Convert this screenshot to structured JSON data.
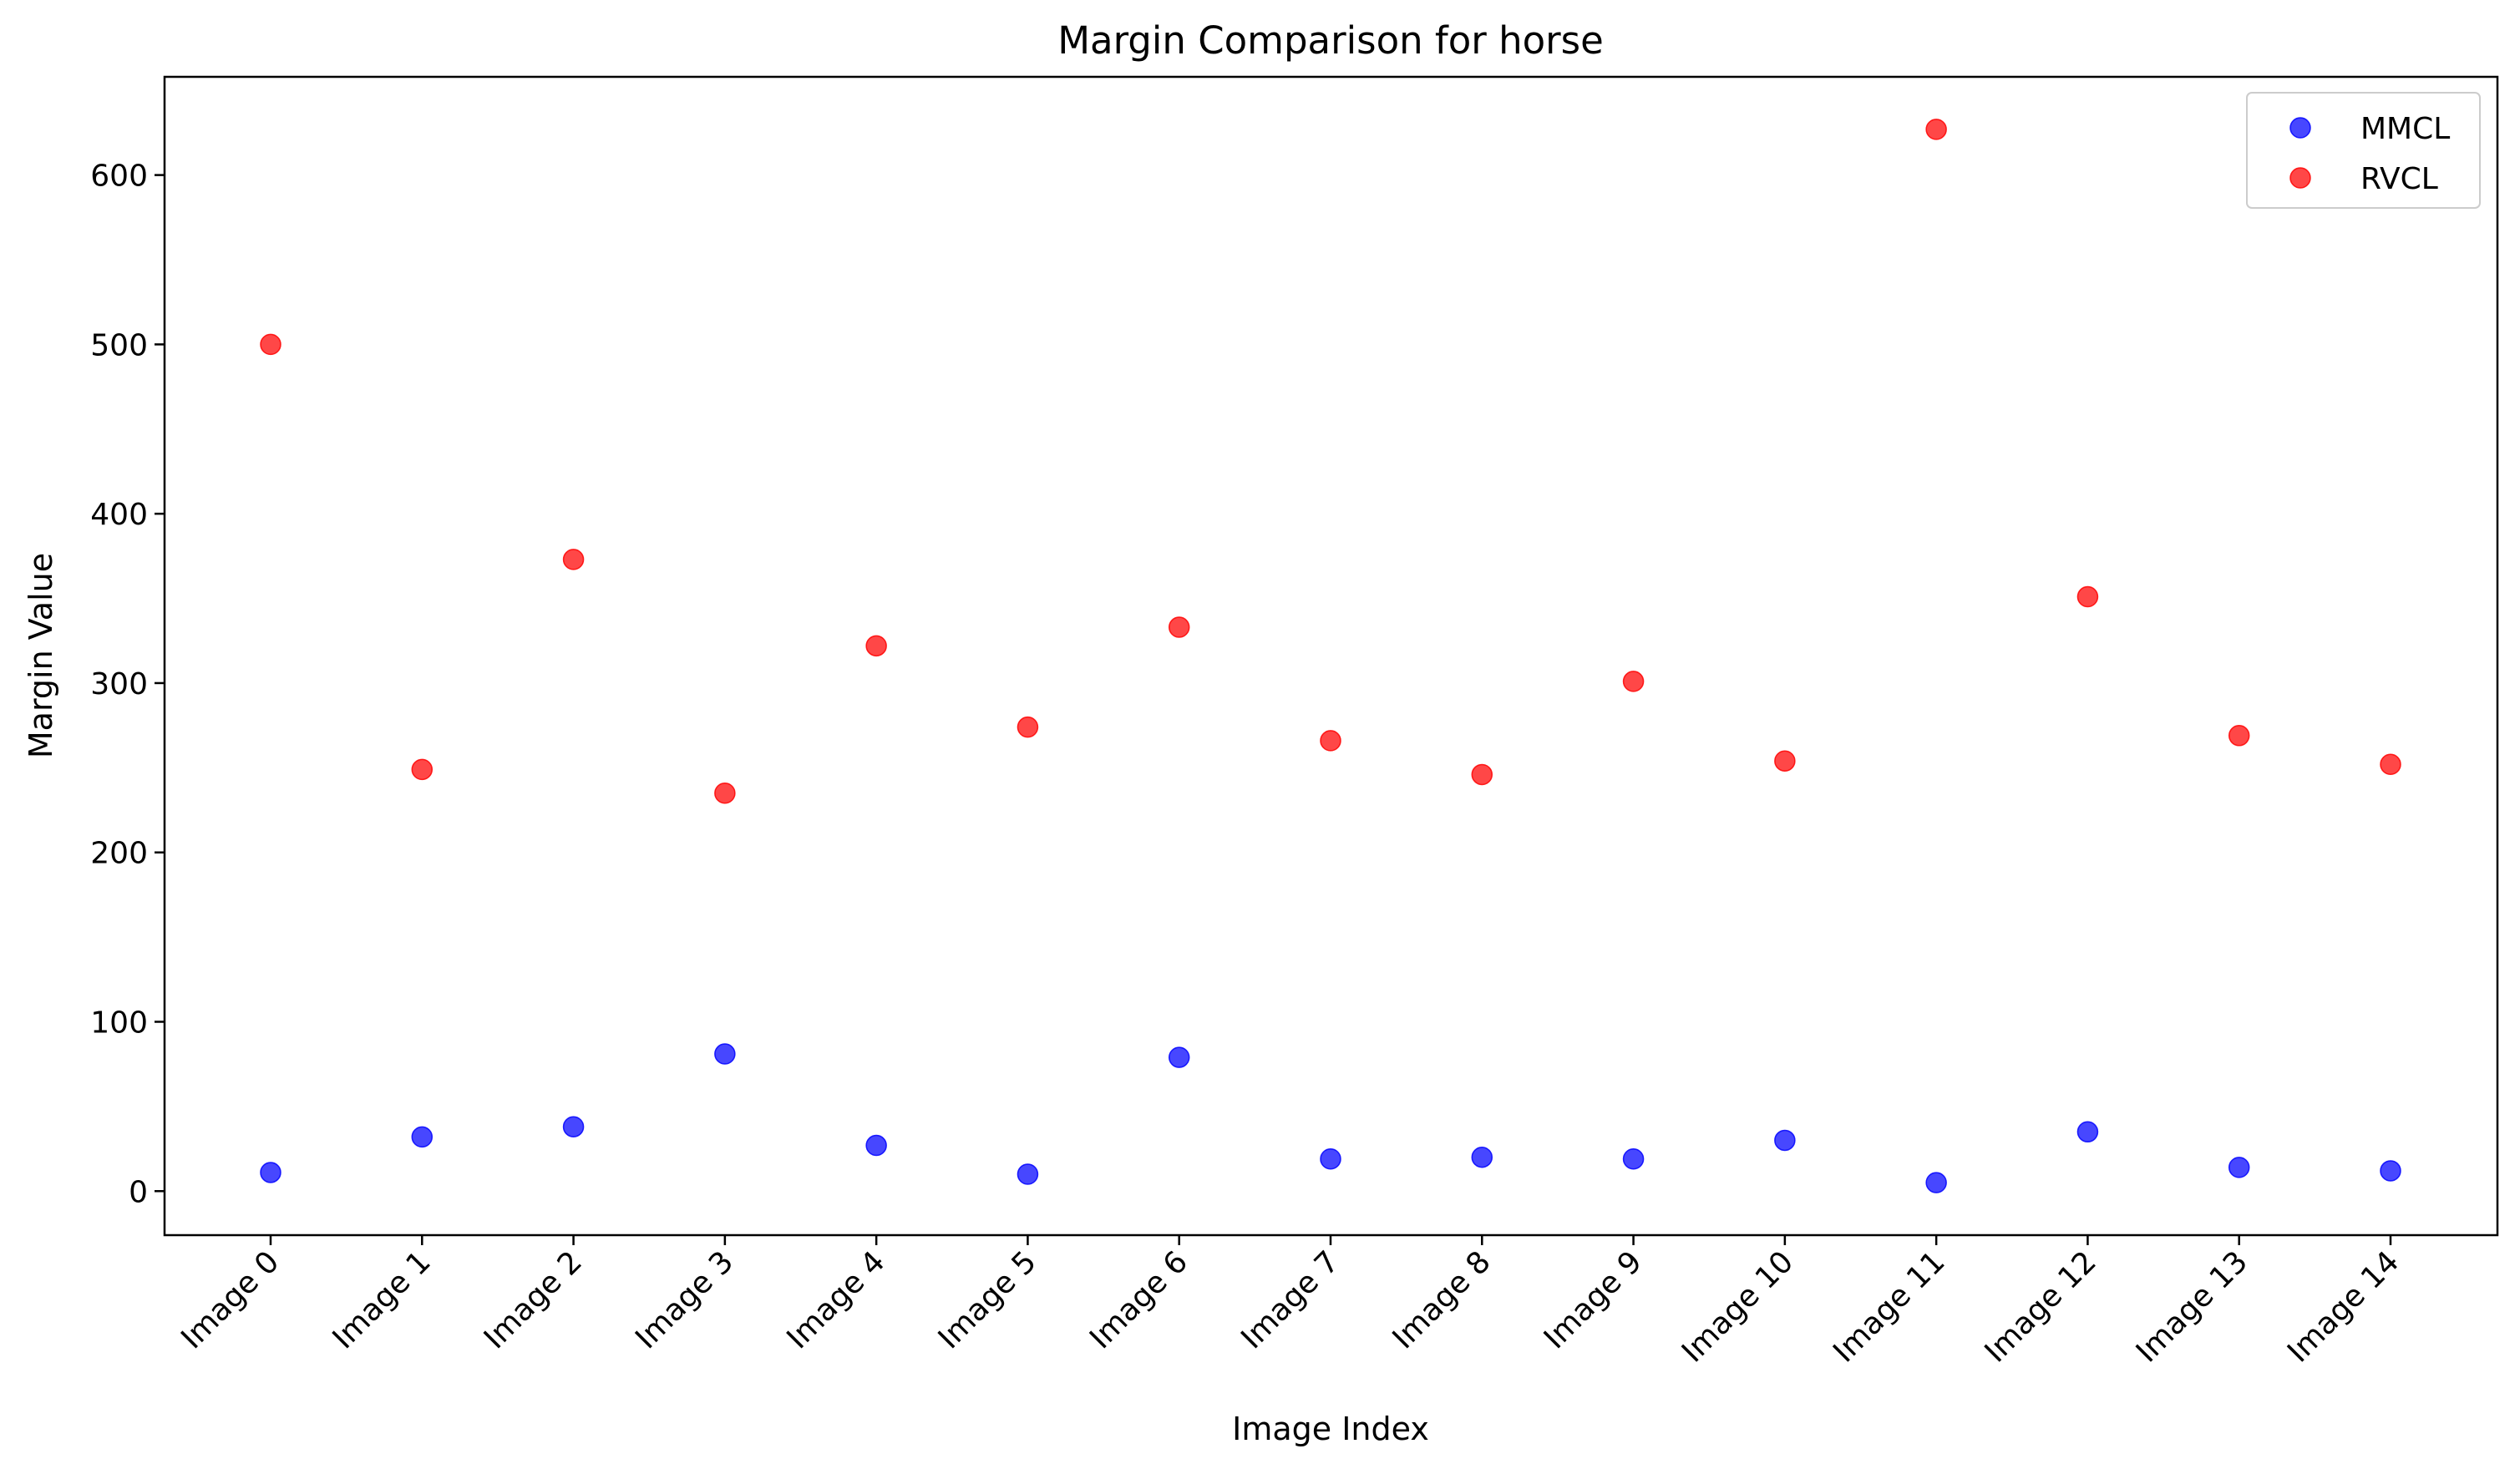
{
  "chart_data": {
    "type": "scatter",
    "title": "Margin Comparison for horse",
    "xlabel": "Image Index",
    "ylabel": "Margin Value",
    "categories": [
      "Image 0",
      "Image 1",
      "Image 2",
      "Image 3",
      "Image 4",
      "Image 5",
      "Image 6",
      "Image 7",
      "Image 8",
      "Image 9",
      "Image 10",
      "Image 11",
      "Image 12",
      "Image 13",
      "Image 14"
    ],
    "ylim": [
      -26,
      658
    ],
    "yticks": [
      0,
      100,
      200,
      300,
      400,
      500,
      600
    ],
    "grid": false,
    "legend_position": "top-right",
    "series": [
      {
        "name": "MMCL",
        "color": "#0000ff",
        "values": [
          11,
          32,
          38,
          81,
          27,
          10,
          79,
          19,
          20,
          19,
          30,
          5,
          35,
          14,
          12
        ]
      },
      {
        "name": "RVCL",
        "color": "#ff0000",
        "values": [
          500,
          249,
          373,
          235,
          322,
          274,
          333,
          266,
          246,
          301,
          254,
          627,
          351,
          269,
          252
        ]
      }
    ]
  }
}
